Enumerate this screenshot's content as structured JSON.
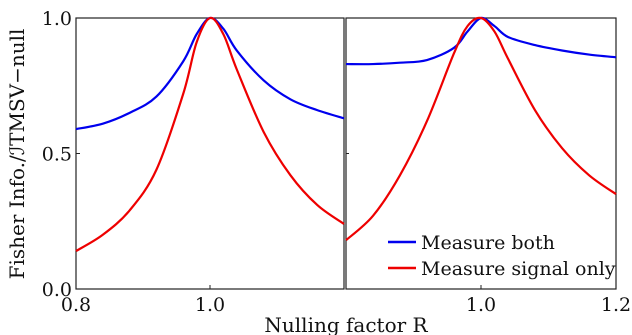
{
  "chart_data": [
    {
      "type": "line",
      "panel": "left",
      "xlim": [
        0.8,
        1.2
      ],
      "ylim": [
        0.0,
        1.0
      ],
      "xticks": [
        "0.8",
        "1.0"
      ],
      "yticks": [
        "0.0",
        "0.5",
        "1.0"
      ],
      "ylabel": "Fisher Info./ℐTMSV−null",
      "series": [
        {
          "name": "Measure both",
          "color": "#0000ee",
          "x": [
            0.8,
            0.84,
            0.88,
            0.92,
            0.96,
            0.98,
            1.0,
            1.02,
            1.04,
            1.08,
            1.12,
            1.16,
            1.2
          ],
          "y": [
            0.59,
            0.61,
            0.65,
            0.71,
            0.84,
            0.94,
            1.0,
            0.96,
            0.88,
            0.77,
            0.7,
            0.66,
            0.63
          ]
        },
        {
          "name": "Measure signal only",
          "color": "#ee0000",
          "x": [
            0.8,
            0.84,
            0.88,
            0.92,
            0.96,
            0.98,
            1.0,
            1.02,
            1.04,
            1.08,
            1.12,
            1.16,
            1.2
          ],
          "y": [
            0.14,
            0.2,
            0.29,
            0.44,
            0.72,
            0.91,
            1.0,
            0.94,
            0.81,
            0.58,
            0.42,
            0.31,
            0.24
          ]
        }
      ]
    },
    {
      "type": "line",
      "panel": "right",
      "xlim": [
        0.8,
        1.2
      ],
      "ylim": [
        0.0,
        1.0
      ],
      "xticks": [
        "1.0",
        "1.2"
      ],
      "yticks": [],
      "legend": {
        "position": "bottom-right",
        "entries": [
          "Measure both",
          "Measure signal only"
        ]
      },
      "series": [
        {
          "name": "Measure both",
          "color": "#0000ee",
          "x": [
            0.8,
            0.84,
            0.88,
            0.92,
            0.96,
            0.98,
            1.0,
            1.02,
            1.04,
            1.08,
            1.12,
            1.16,
            1.2
          ],
          "y": [
            0.83,
            0.83,
            0.835,
            0.845,
            0.89,
            0.95,
            1.0,
            0.97,
            0.93,
            0.9,
            0.88,
            0.865,
            0.855
          ]
        },
        {
          "name": "Measure signal only",
          "color": "#ee0000",
          "x": [
            0.8,
            0.84,
            0.88,
            0.92,
            0.96,
            0.98,
            1.0,
            1.02,
            1.04,
            1.08,
            1.12,
            1.16,
            1.2
          ],
          "y": [
            0.18,
            0.27,
            0.42,
            0.62,
            0.87,
            0.97,
            1.0,
            0.95,
            0.85,
            0.66,
            0.52,
            0.42,
            0.35
          ]
        }
      ]
    }
  ],
  "xlabel": "Nulling factor R"
}
